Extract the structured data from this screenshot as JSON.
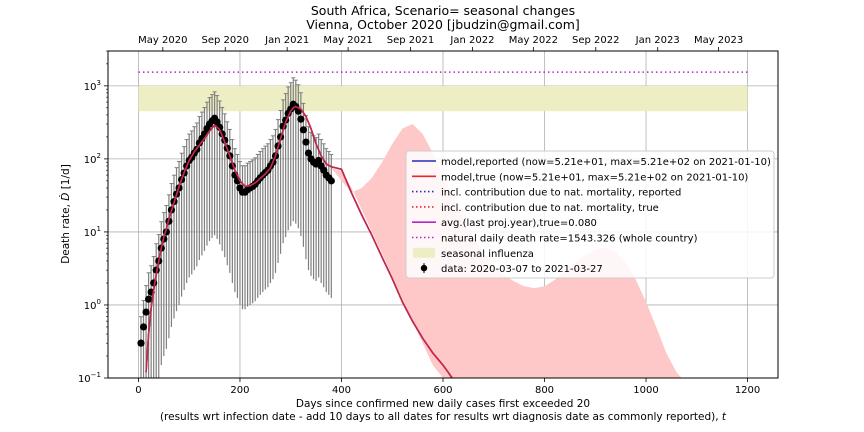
{
  "chart_data": {
    "type": "line",
    "title": "South Africa, Scenario= seasonal changes",
    "subtitle": "Vienna, October 2020 [jbudzin@gmail.com]",
    "xlabel": "Days since confirmed new daily cases first exceeded 20",
    "xlabel2": "(results wrt infection date - add 10 days to all dates for results wrt diagnosis date as commonly reported), ",
    "xlabel2_var": "t",
    "ylabel": "Death rate, ",
    "ylabel_var": "Ḋ",
    "ylabel_unit": " [1/d]",
    "xlim": [
      -60,
      1260
    ],
    "ylim": [
      0.1,
      3000
    ],
    "yscale": "log",
    "grid": true,
    "x_ticks": [
      {
        "value": 0,
        "label": "0"
      },
      {
        "value": 200,
        "label": "200"
      },
      {
        "value": 400,
        "label": "400"
      },
      {
        "value": 600,
        "label": "600"
      },
      {
        "value": 800,
        "label": "800"
      },
      {
        "value": 1000,
        "label": "1000"
      },
      {
        "value": 1200,
        "label": "1200"
      }
    ],
    "y_ticks": [
      {
        "value": 0.1,
        "base": "10",
        "exp": "−1"
      },
      {
        "value": 1,
        "base": "10",
        "exp": "0"
      },
      {
        "value": 10,
        "base": "10",
        "exp": "1"
      },
      {
        "value": 100,
        "base": "10",
        "exp": "2"
      },
      {
        "value": 1000,
        "base": "10",
        "exp": "3"
      }
    ],
    "top_ticks": [
      {
        "value": 48,
        "label": "May 2020"
      },
      {
        "value": 171,
        "label": "Sep 2020"
      },
      {
        "value": 293,
        "label": "Jan 2021"
      },
      {
        "value": 413,
        "label": "May 2021"
      },
      {
        "value": 536,
        "label": "Sep 2021"
      },
      {
        "value": 658,
        "label": "Jan 2022"
      },
      {
        "value": 778,
        "label": "May 2022"
      },
      {
        "value": 901,
        "label": "Sep 2022"
      },
      {
        "value": 1023,
        "label": "Jan 2023"
      },
      {
        "value": 1143,
        "label": "May 2023"
      }
    ],
    "natural_death_rate": 1543.326,
    "influenza_band": {
      "x": [
        0,
        1200
      ],
      "y": [
        450,
        1000
      ]
    },
    "legend_position": "center-right",
    "legend": [
      {
        "label": "model,reported (now=5.21e+01, max=5.21e+02 on 2021-01-10)",
        "color": "#2a2ab8",
        "style": "solid"
      },
      {
        "label": "model,true (now=5.21e+01, max=5.21e+02 on 2021-01-10)",
        "color": "#e8262d",
        "style": "solid"
      },
      {
        "label": "incl. contribution due to nat. mortality, reported",
        "color": "#2a2ab8",
        "style": "dotted"
      },
      {
        "label": "incl. contribution due to nat. mortality, true",
        "color": "#e8262d",
        "style": "dotted"
      },
      {
        "label": "avg.(last proj.year),true=0.080",
        "color": "#b326c9",
        "style": "solid"
      },
      {
        "label": "natural daily death rate=1543.326 (whole country)",
        "color": "#b326c9",
        "style": "dotted"
      },
      {
        "label": "seasonal influenza",
        "color": "#eeeec4",
        "style": "patch"
      },
      {
        "label": "data: 2020-03-07 to 2021-03-27",
        "color": "#000000",
        "style": "errorbar"
      }
    ],
    "colors": {
      "model_reported": "#2a2ab8",
      "model_true": "#e8262d",
      "projection_band": "#ffc8c8",
      "influenza_band": "#eeeec4",
      "natural_rate": "#b326c9",
      "data_points": "#000000",
      "error_bars": "#7f7f7f"
    },
    "series": [
      {
        "name": "data: 2020-03-07 to 2021-03-27",
        "kind": "scatter",
        "x": [
          5,
          10,
          15,
          20,
          25,
          30,
          35,
          40,
          45,
          50,
          55,
          60,
          65,
          70,
          75,
          80,
          85,
          90,
          95,
          100,
          105,
          110,
          115,
          120,
          125,
          130,
          135,
          140,
          145,
          150,
          155,
          160,
          165,
          170,
          175,
          180,
          185,
          190,
          195,
          200,
          205,
          210,
          215,
          220,
          225,
          230,
          235,
          240,
          245,
          250,
          255,
          260,
          265,
          270,
          275,
          280,
          285,
          290,
          295,
          300,
          305,
          310,
          315,
          320,
          325,
          330,
          335,
          340,
          345,
          350,
          355,
          360,
          365,
          370,
          375,
          380
        ],
        "y": [
          0.3,
          0.5,
          0.8,
          1.2,
          1.5,
          2,
          3,
          4,
          6,
          8,
          10,
          14,
          20,
          26,
          33,
          40,
          52,
          64,
          80,
          95,
          105,
          120,
          135,
          165,
          190,
          220,
          260,
          300,
          330,
          360,
          320,
          270,
          220,
          180,
          140,
          110,
          80,
          60,
          50,
          40,
          35,
          35,
          38,
          40,
          42,
          45,
          50,
          55,
          60,
          65,
          70,
          80,
          90,
          110,
          150,
          200,
          280,
          340,
          420,
          480,
          560,
          520,
          450,
          350,
          250,
          170,
          120,
          100,
          90,
          85,
          95,
          80,
          70,
          60,
          55,
          50
        ]
      },
      {
        "name": "model,reported (now=5.21e+01, max=5.21e+02 on 2021-01-10)",
        "kind": "line",
        "x": [
          15,
          20,
          25,
          30,
          35,
          40,
          45,
          50,
          55,
          60,
          70,
          80,
          90,
          100,
          110,
          120,
          130,
          140,
          150,
          160,
          170,
          180,
          190,
          200,
          210,
          220,
          230,
          240,
          250,
          260,
          270,
          280,
          290,
          300,
          305,
          310,
          320,
          330,
          340,
          350,
          360,
          370,
          380,
          390,
          400,
          420,
          440,
          460,
          480,
          500,
          520,
          540,
          560,
          580,
          600,
          610,
          618
        ],
        "y": [
          0.12,
          0.4,
          0.9,
          1.6,
          2.6,
          4,
          6,
          8.5,
          11,
          15,
          25,
          42,
          65,
          95,
          125,
          155,
          190,
          240,
          290,
          250,
          170,
          110,
          70,
          50,
          42,
          43,
          47,
          54,
          62,
          75,
          110,
          190,
          320,
          450,
          500,
          521,
          480,
          380,
          260,
          160,
          110,
          85,
          78,
          75,
          72,
          34,
          17,
          9,
          4.5,
          2.3,
          1.1,
          0.6,
          0.35,
          0.22,
          0.15,
          0.12,
          0.1
        ]
      },
      {
        "name": "projection band upper",
        "kind": "band_upper",
        "x": [
          340,
          360,
          380,
          400,
          420,
          440,
          460,
          480,
          500,
          520,
          540,
          560,
          580,
          600,
          620,
          640,
          660,
          680,
          700,
          720,
          740,
          760,
          780,
          800,
          820,
          840,
          860,
          880,
          900,
          920,
          940,
          960,
          980,
          1000,
          1020,
          1040,
          1060,
          1070
        ],
        "y": [
          80,
          78,
          75,
          50,
          35,
          40,
          55,
          90,
          160,
          260,
          300,
          220,
          120,
          60,
          30,
          15,
          8,
          5,
          3.5,
          2.6,
          2.1,
          1.8,
          1.7,
          1.8,
          2.2,
          2.9,
          3.8,
          4.8,
          5.7,
          6.1,
          5.4,
          3.8,
          2.2,
          1.1,
          0.5,
          0.22,
          0.12,
          0.1
        ]
      },
      {
        "name": "projection band lower",
        "kind": "band_lower",
        "x": [
          340,
          360,
          380,
          400,
          420,
          440,
          460,
          480,
          500,
          520,
          540,
          560,
          580,
          600,
          620,
          640,
          660,
          680,
          700,
          720,
          740,
          760,
          780,
          800,
          820,
          840,
          860,
          880,
          900,
          920,
          940,
          960,
          980,
          1000,
          1020,
          1040,
          1060,
          1070
        ],
        "y": [
          80,
          78,
          75,
          68,
          40,
          20,
          10,
          5,
          2.5,
          1.2,
          0.6,
          0.3,
          0.15,
          0.1,
          0.1,
          0.1,
          0.1,
          0.1,
          0.1,
          0.1,
          0.1,
          0.1,
          0.1,
          0.1,
          0.1,
          0.1,
          0.1,
          0.1,
          0.1,
          0.1,
          0.1,
          0.1,
          0.1,
          0.1,
          0.1,
          0.1,
          0.1,
          0.1
        ]
      }
    ]
  }
}
